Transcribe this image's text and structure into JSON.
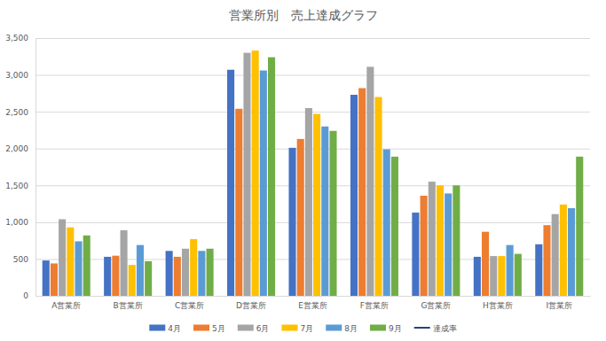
{
  "chart_data": {
    "type": "bar",
    "title": "営業所別　売上達成グラフ",
    "categories": [
      "A営業所",
      "B営業所",
      "C営業所",
      "D営業所",
      "E営業所",
      "F営業所",
      "G営業所",
      "H営業所",
      "I営業所"
    ],
    "series": [
      {
        "name": "4月",
        "color": "#4472c4",
        "values": [
          480,
          530,
          610,
          3070,
          2010,
          2730,
          1130,
          530,
          700
        ]
      },
      {
        "name": "5月",
        "color": "#ed7d31",
        "values": [
          440,
          545,
          530,
          2540,
          2130,
          2820,
          1360,
          870,
          960
        ]
      },
      {
        "name": "6月",
        "color": "#a5a5a5",
        "values": [
          1040,
          890,
          640,
          3300,
          2550,
          3110,
          1550,
          540,
          1110
        ]
      },
      {
        "name": "7月",
        "color": "#ffc000",
        "values": [
          930,
          420,
          770,
          3330,
          2470,
          2700,
          1500,
          540,
          1240
        ]
      },
      {
        "name": "8月",
        "color": "#5b9bd5",
        "values": [
          740,
          690,
          610,
          3060,
          2300,
          1990,
          1390,
          690,
          1190
        ]
      },
      {
        "name": "9月",
        "color": "#70ad47",
        "values": [
          820,
          470,
          640,
          3240,
          2240,
          1890,
          1500,
          570,
          1890
        ]
      },
      {
        "name": "達成率",
        "color": "#264478",
        "type": "line",
        "values": [
          null,
          null,
          null,
          null,
          null,
          null,
          null,
          null,
          null
        ]
      }
    ],
    "ylim": [
      0,
      3500
    ],
    "yticks": [
      0,
      500,
      {
        "value": 1000,
        "label": "1,000"
      },
      {
        "value": 1500,
        "label": "1,500"
      },
      {
        "value": 2000,
        "label": "2,000"
      },
      {
        "value": 2500,
        "label": "2,500"
      },
      {
        "value": 3000,
        "label": "3,000"
      },
      {
        "value": 3500,
        "label": "3,500"
      }
    ],
    "grid": true,
    "legend": "bottom"
  }
}
